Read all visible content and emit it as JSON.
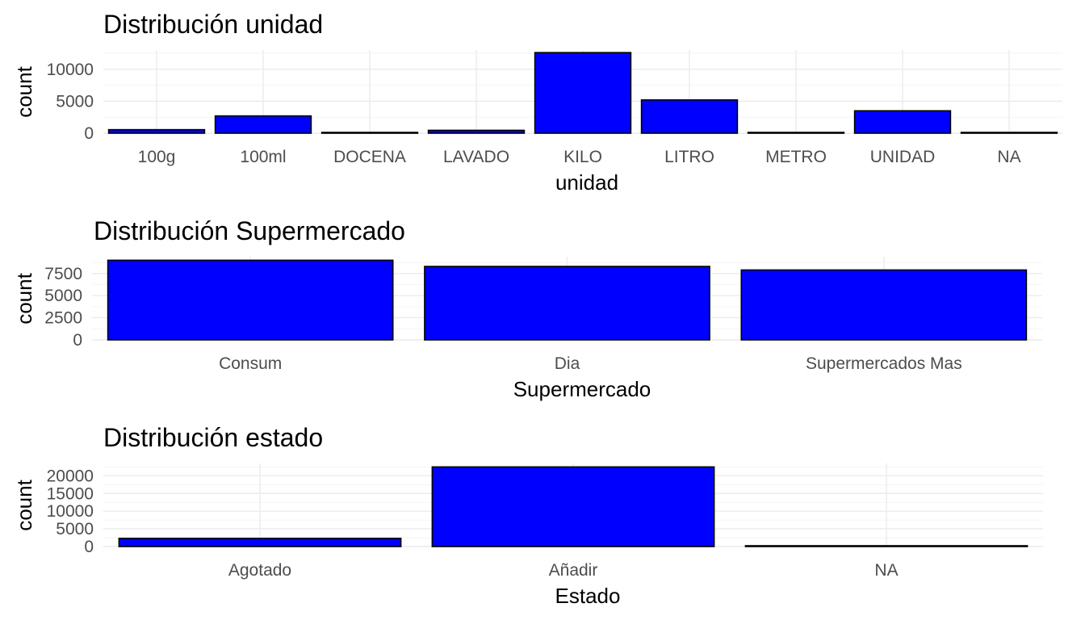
{
  "chart_data": [
    {
      "type": "bar",
      "title": "Distribución unidad",
      "xlabel": "unidad",
      "ylabel": "count",
      "categories": [
        "100g",
        "100ml",
        "DOCENA",
        "LAVADO",
        "KILO",
        "LITRO",
        "METRO",
        "UNIDAD",
        "NA"
      ],
      "values": [
        550,
        2700,
        60,
        450,
        12600,
        5200,
        80,
        3500,
        100
      ],
      "yticks": [
        0,
        5000,
        10000
      ],
      "ylim": [
        0,
        13000
      ],
      "grid": true,
      "bar_color": "#0000ff"
    },
    {
      "type": "bar",
      "title": "Distribución Supermercado",
      "xlabel": "Supermercado",
      "ylabel": "count",
      "categories": [
        "Consum",
        "Dia",
        "Supermercados Mas"
      ],
      "values": [
        9000,
        8300,
        7900
      ],
      "yticks": [
        0,
        2500,
        5000,
        7500
      ],
      "ylim": [
        0,
        9400
      ],
      "grid": true,
      "bar_color": "#0000ff"
    },
    {
      "type": "bar",
      "title": "Distribución estado",
      "xlabel": "Estado",
      "ylabel": "count",
      "categories": [
        "Agotado",
        "Añadir",
        "NA"
      ],
      "values": [
        2300,
        22500,
        150
      ],
      "yticks": [
        0,
        5000,
        10000,
        15000,
        20000
      ],
      "ylim": [
        0,
        23500
      ],
      "grid": true,
      "bar_color": "#0000ff"
    }
  ]
}
